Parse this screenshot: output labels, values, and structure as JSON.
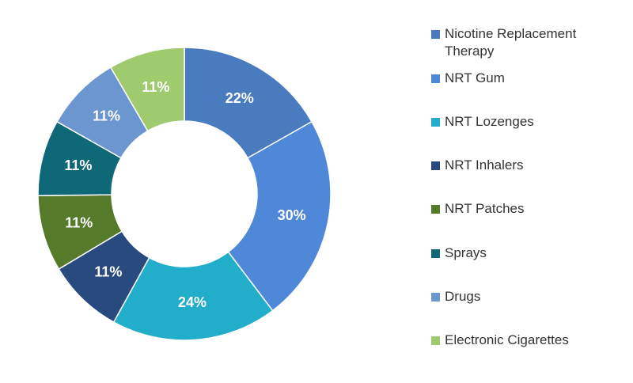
{
  "chart_data": {
    "type": "donut",
    "categories": [
      "Nicotine Replacement Therapy",
      "NRT Gum",
      "NRT Lozenges",
      "NRT Inhalers",
      "NRT Patches",
      "Sprays",
      "Drugs",
      "Electronic Cigarettes"
    ],
    "values": [
      22,
      30,
      24,
      11,
      11,
      11,
      11,
      11
    ],
    "value_labels": [
      "22%",
      "30%",
      "24%",
      "11%",
      "11%",
      "11%",
      "11%",
      "11%"
    ],
    "colors": [
      "#4a7bbf",
      "#4f88d8",
      "#22aecb",
      "#284a7e",
      "#557a2a",
      "#0f6878",
      "#6c96d0",
      "#9fca6d"
    ],
    "legend": "right"
  }
}
